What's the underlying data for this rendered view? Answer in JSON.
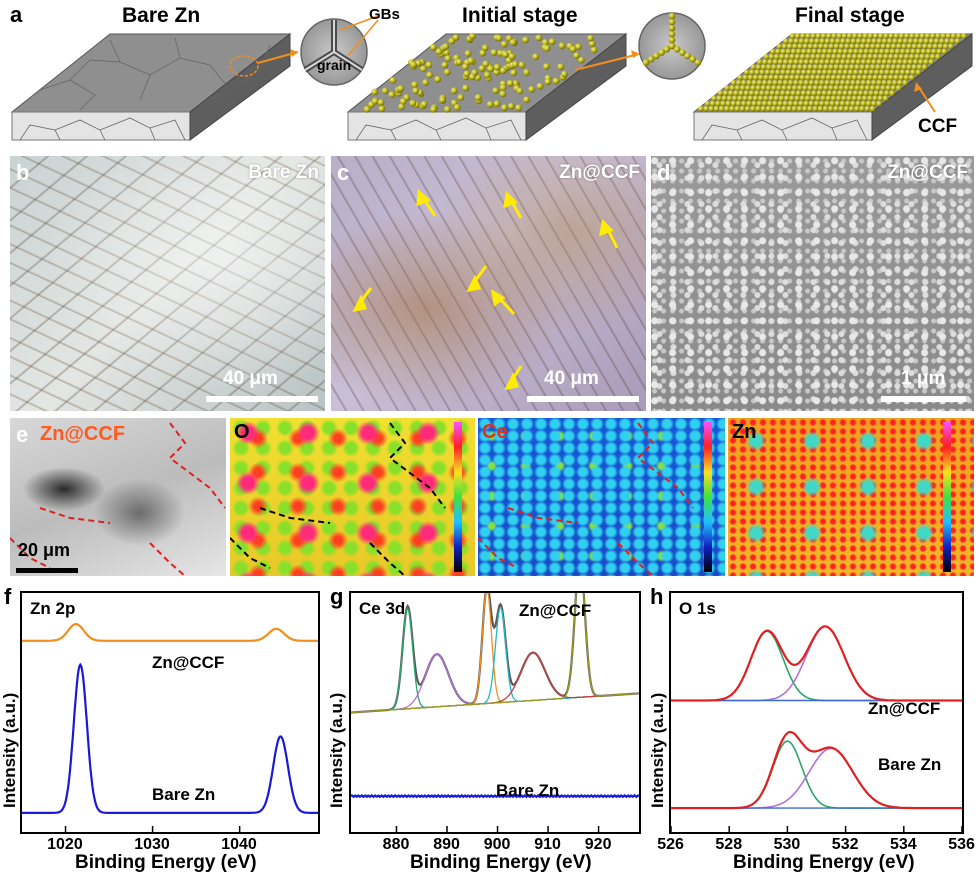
{
  "panel_letters": {
    "a": "a",
    "b": "b",
    "c": "c",
    "d": "d",
    "e": "e",
    "f": "f",
    "g": "g",
    "h": "h"
  },
  "schematic": {
    "bare_title": "Bare Zn",
    "initial_title": "Initial stage",
    "final_title": "Final stage",
    "inset_gbs": "GBs",
    "inset_grain": "grain",
    "ccf_label": "CCF"
  },
  "micrographs": {
    "b": {
      "label": "Bare Zn",
      "scale": "40 μm"
    },
    "c": {
      "label": "Zn@CCF",
      "scale": "40 μm"
    },
    "d": {
      "label": "Zn@CCF",
      "scale": "1 μm"
    }
  },
  "eds": {
    "e_label": "Zn@CCF",
    "scale": "20 μm",
    "maps": [
      "O",
      "Ce",
      "Zn"
    ],
    "colors": {
      "e_label": "#ff5a1f",
      "ce_label": "#e0301e"
    }
  },
  "chart_data": [
    {
      "type": "line",
      "panel": "f",
      "title": "Zn 2p",
      "xlabel": "Binding Energy (eV)",
      "ylabel": "Intensity (a.u.)",
      "xlim": [
        1015,
        1049
      ],
      "x_ticks": [
        1020,
        1030,
        1040
      ],
      "series": [
        {
          "name": "Zn@CCF",
          "color": "#f28e1c",
          "peaks": [
            {
              "x": 1021.2,
              "height": 0.07,
              "width": 0.9
            },
            {
              "x": 1044.2,
              "height": 0.05,
              "width": 0.9
            }
          ],
          "offset": 0.8
        },
        {
          "name": "Bare Zn",
          "color": "#1a1ad6",
          "peaks": [
            {
              "x": 1021.7,
              "height": 0.62,
              "width": 0.75
            },
            {
              "x": 1044.7,
              "height": 0.32,
              "width": 0.85
            }
          ],
          "offset": 0.08
        }
      ]
    },
    {
      "type": "line",
      "panel": "g",
      "title": "Ce 3d",
      "xlabel": "Binding Energy (eV)",
      "ylabel": "Intensity (a.u.)",
      "xlim": [
        871,
        928
      ],
      "x_ticks": [
        880,
        890,
        900,
        910,
        920
      ],
      "series": [
        {
          "name": "Zn@CCF",
          "color": "#5a5a5a",
          "peaks": [
            {
              "x": 882.2,
              "height": 0.42,
              "width": 1.0
            },
            {
              "x": 888.0,
              "height": 0.22,
              "width": 2.3
            },
            {
              "x": 897.9,
              "height": 0.48,
              "width": 0.9
            },
            {
              "x": 900.6,
              "height": 0.4,
              "width": 1.0
            },
            {
              "x": 907.0,
              "height": 0.2,
              "width": 2.4
            },
            {
              "x": 916.3,
              "height": 0.58,
              "width": 1.0
            }
          ],
          "offset": 0.5
        },
        {
          "name": "Bare Zn",
          "color": "#1a1ad6",
          "peaks": [],
          "offset": 0.15
        }
      ]
    },
    {
      "type": "line",
      "panel": "h",
      "title": "O 1s",
      "xlabel": "Binding Energy (eV)",
      "ylabel": "Intensity (a.u.)",
      "xlim": [
        526,
        536
      ],
      "x_ticks": [
        526,
        528,
        530,
        532,
        534,
        536
      ],
      "series": [
        {
          "name": "Zn@CCF",
          "color": "#e02020",
          "peaks": [
            {
              "x": 529.3,
              "height": 0.29,
              "width": 0.55,
              "color": "#2aa56a"
            },
            {
              "x": 531.3,
              "height": 0.31,
              "width": 0.65,
              "color": "#b470d8"
            }
          ],
          "offset": 0.55
        },
        {
          "name": "Bare Zn",
          "color": "#e02020",
          "peaks": [
            {
              "x": 530.0,
              "height": 0.28,
              "width": 0.5,
              "color": "#2aa56a"
            },
            {
              "x": 531.5,
              "height": 0.25,
              "width": 0.75,
              "color": "#b470d8"
            }
          ],
          "offset": 0.1
        }
      ]
    }
  ]
}
